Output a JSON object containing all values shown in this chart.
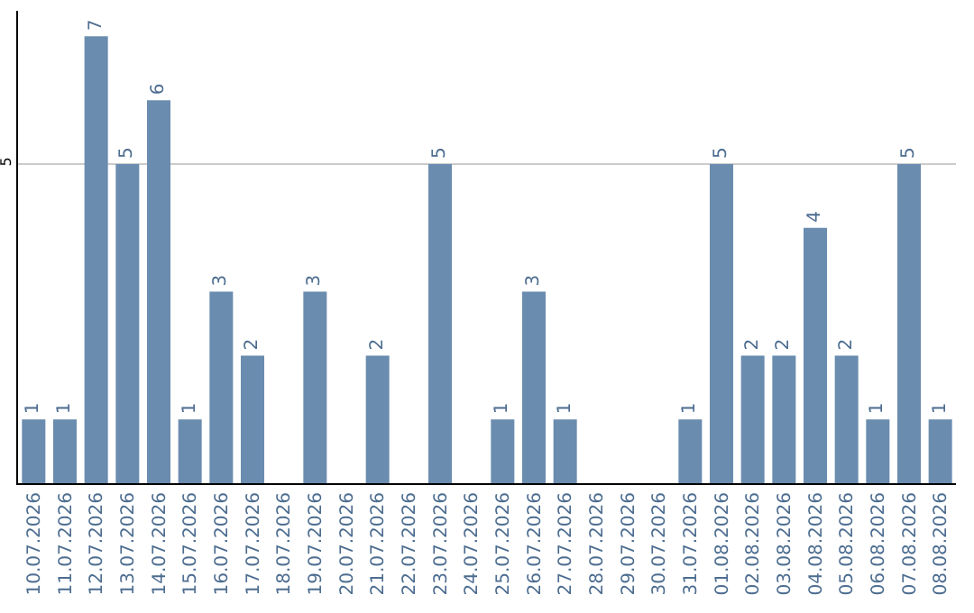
{
  "chart_data": {
    "type": "bar",
    "categories": [
      "10.07.2026",
      "11.07.2026",
      "12.07.2026",
      "13.07.2026",
      "14.07.2026",
      "15.07.2026",
      "16.07.2026",
      "17.07.2026",
      "18.07.2026",
      "19.07.2026",
      "20.07.2026",
      "21.07.2026",
      "22.07.2026",
      "23.07.2026",
      "24.07.2026",
      "25.07.2026",
      "26.07.2026",
      "27.07.2026",
      "28.07.2026",
      "29.07.2026",
      "30.07.2026",
      "31.07.2026",
      "01.08.2026",
      "02.08.2026",
      "03.08.2026",
      "04.08.2026",
      "05.08.2026",
      "06.08.2026",
      "07.08.2026",
      "08.08.2026"
    ],
    "values": [
      1,
      1,
      7,
      5,
      6,
      1,
      3,
      2,
      null,
      3,
      null,
      2,
      null,
      5,
      null,
      1,
      3,
      1,
      null,
      null,
      null,
      1,
      5,
      2,
      2,
      4,
      2,
      1,
      5,
      1
    ],
    "color": "#6a8caf",
    "ylim": [
      0,
      7.4
    ],
    "yticks": [
      5
    ],
    "grid": "y",
    "data_labels": true
  }
}
